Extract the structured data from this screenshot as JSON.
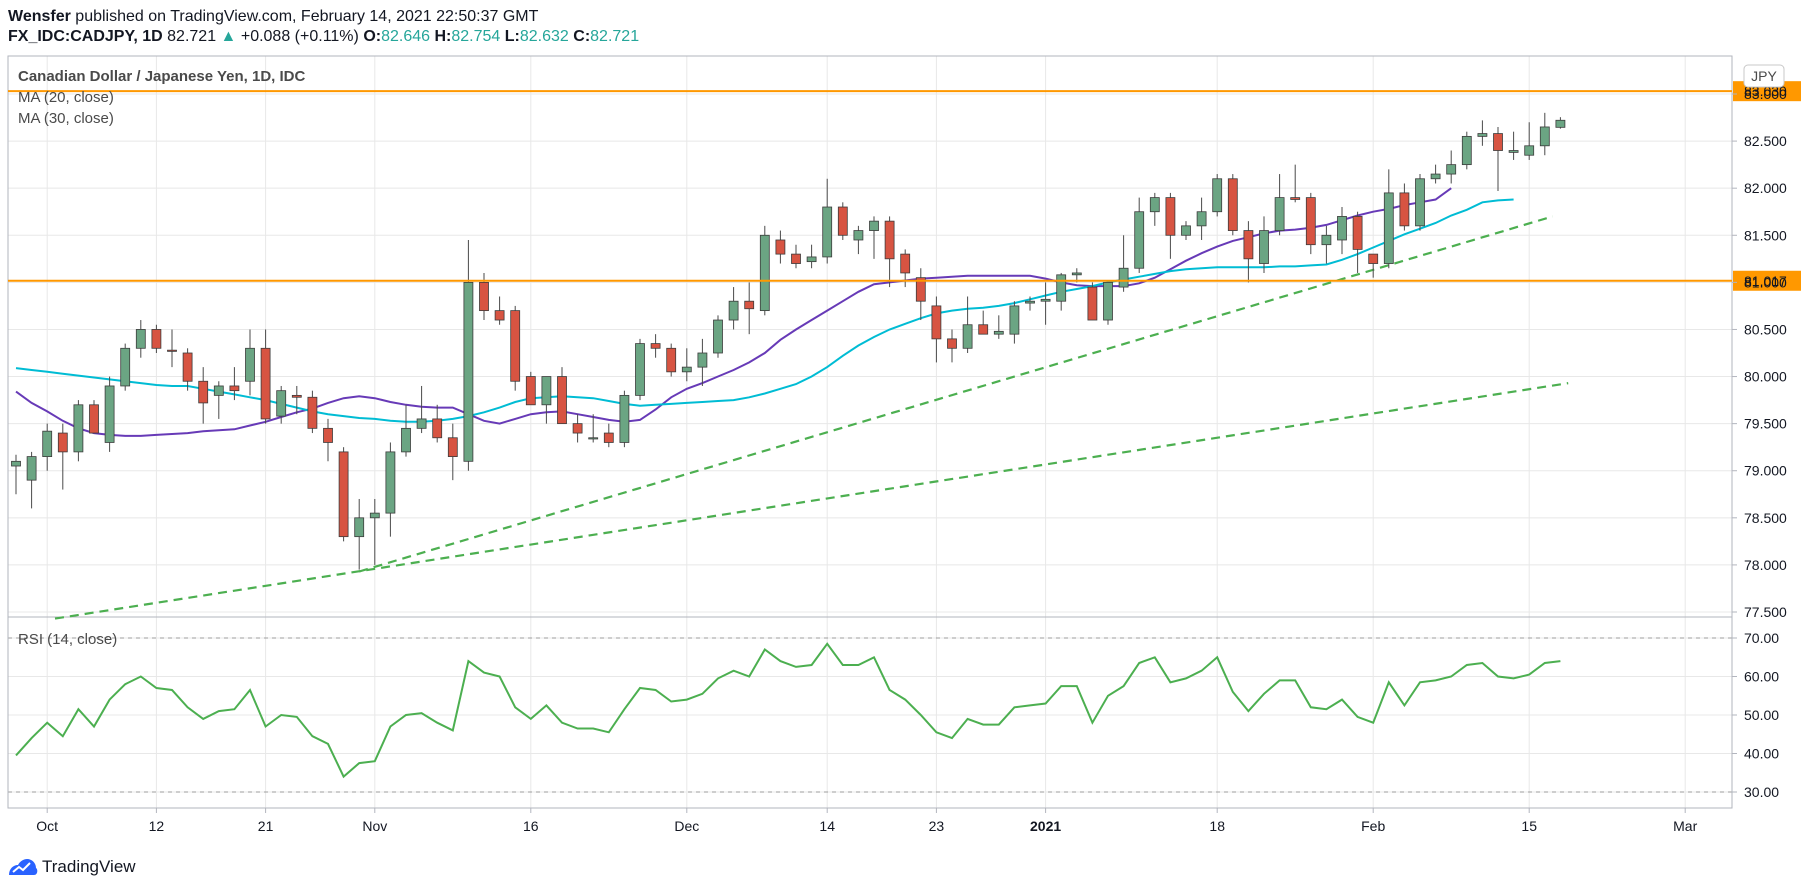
{
  "header": {
    "author": "Wensfer",
    "published_text": "published on TradingView.com, February 14, 2021 22:50:37 GMT",
    "symbol": "FX_IDC:CADJPY, 1D",
    "last": "82.721",
    "change_icon": "triangle-up-icon",
    "change": "+0.088 (+0.11%)",
    "o_label": "O:",
    "o": "82.646",
    "h_label": "H:",
    "h": "82.754",
    "l_label": "L:",
    "l": "82.632",
    "c_label": "C:",
    "c": "82.721"
  },
  "legend": {
    "title": "Canadian Dollar / Japanese Yen, 1D, IDC",
    "ma20": "MA (20, close)",
    "ma30": "MA (30, close)",
    "rsi": "RSI (14, close)",
    "currency": "JPY"
  },
  "footer": {
    "brand": "TradingView",
    "logo_icon": "tradingview-logo-icon"
  },
  "colors": {
    "up": "#6ba583",
    "down": "#d75442",
    "wick": "#4a4a4a",
    "ma20": "#673ab7",
    "ma30": "#00bcd4",
    "trend": "#4caf50",
    "rsi": "#4caf50",
    "hline": "#ff9800",
    "grid": "#e8e8e8",
    "axis": "#131722"
  },
  "chart_data": [
    {
      "type": "candlestick",
      "title": "Canadian Dollar / Japanese Yen, 1D, IDC",
      "ylabel": "JPY",
      "ylim": [
        77.45,
        83.3
      ],
      "yticks": [
        77.5,
        78.0,
        78.5,
        79.0,
        79.5,
        80.0,
        80.5,
        81.0,
        81.5,
        82.0,
        82.5,
        83.0
      ],
      "xlim": [
        -1,
        106.5
      ],
      "xticks": [
        {
          "i": 2,
          "label": "Oct",
          "bold": false
        },
        {
          "i": 9,
          "label": "12",
          "bold": false
        },
        {
          "i": 16,
          "label": "21",
          "bold": false
        },
        {
          "i": 23,
          "label": "Nov",
          "bold": false
        },
        {
          "i": 33,
          "label": "16",
          "bold": false
        },
        {
          "i": 43,
          "label": "Dec",
          "bold": false
        },
        {
          "i": 52,
          "label": "14",
          "bold": false
        },
        {
          "i": 59,
          "label": "23",
          "bold": false
        },
        {
          "i": 66,
          "label": "2021",
          "bold": true
        },
        {
          "i": 77,
          "label": "18",
          "bold": false
        },
        {
          "i": 87,
          "label": "Feb",
          "bold": false
        },
        {
          "i": 97,
          "label": "15",
          "bold": false
        },
        {
          "i": 107,
          "label": "Mar",
          "bold": false
        }
      ],
      "candles": [
        [
          79.05,
          79.17,
          78.75,
          79.1
        ],
        [
          78.9,
          79.2,
          78.6,
          79.15
        ],
        [
          79.15,
          79.5,
          79.0,
          79.42
        ],
        [
          79.4,
          79.5,
          78.8,
          79.2
        ],
        [
          79.2,
          79.75,
          79.1,
          79.7
        ],
        [
          79.7,
          79.75,
          79.4,
          79.4
        ],
        [
          79.3,
          80.0,
          79.2,
          79.9
        ],
        [
          79.9,
          80.35,
          79.85,
          80.3
        ],
        [
          80.3,
          80.6,
          80.2,
          80.5
        ],
        [
          80.5,
          80.55,
          80.25,
          80.3
        ],
        [
          80.28,
          80.5,
          80.1,
          80.27
        ],
        [
          80.25,
          80.3,
          79.85,
          79.95
        ],
        [
          79.95,
          80.1,
          79.5,
          79.72
        ],
        [
          79.8,
          79.95,
          79.55,
          79.9
        ],
        [
          79.9,
          80.1,
          79.75,
          79.85
        ],
        [
          79.95,
          80.5,
          79.8,
          80.3
        ],
        [
          80.3,
          80.5,
          79.5,
          79.55
        ],
        [
          79.58,
          79.9,
          79.5,
          79.85
        ],
        [
          79.8,
          79.9,
          79.6,
          79.78
        ],
        [
          79.78,
          79.85,
          79.4,
          79.45
        ],
        [
          79.45,
          79.55,
          79.1,
          79.3
        ],
        [
          79.2,
          79.25,
          78.25,
          78.3
        ],
        [
          78.3,
          78.7,
          77.95,
          78.5
        ],
        [
          78.5,
          78.7,
          78.0,
          78.55
        ],
        [
          78.55,
          79.3,
          78.3,
          79.2
        ],
        [
          79.2,
          79.7,
          79.15,
          79.45
        ],
        [
          79.45,
          79.9,
          79.4,
          79.55
        ],
        [
          79.55,
          79.7,
          79.3,
          79.35
        ],
        [
          79.35,
          79.5,
          78.9,
          79.15
        ],
        [
          79.1,
          81.45,
          79.0,
          81.0
        ],
        [
          81.0,
          81.1,
          80.6,
          80.7
        ],
        [
          80.7,
          80.85,
          80.55,
          80.6
        ],
        [
          80.7,
          80.75,
          79.85,
          79.95
        ],
        [
          80.0,
          80.05,
          79.7,
          79.7
        ],
        [
          79.7,
          80.0,
          79.5,
          80.0
        ],
        [
          80.0,
          80.1,
          79.5,
          79.5
        ],
        [
          79.5,
          79.6,
          79.3,
          79.4
        ],
        [
          79.35,
          79.6,
          79.3,
          79.35
        ],
        [
          79.4,
          79.5,
          79.25,
          79.3
        ],
        [
          79.3,
          79.85,
          79.25,
          79.8
        ],
        [
          79.8,
          80.4,
          79.75,
          80.35
        ],
        [
          80.35,
          80.45,
          80.2,
          80.3
        ],
        [
          80.3,
          80.35,
          80.0,
          80.05
        ],
        [
          80.05,
          80.3,
          79.95,
          80.1
        ],
        [
          80.1,
          80.4,
          79.9,
          80.25
        ],
        [
          80.25,
          80.65,
          80.2,
          80.6
        ],
        [
          80.6,
          80.95,
          80.5,
          80.8
        ],
        [
          80.8,
          81.0,
          80.45,
          80.72
        ],
        [
          80.7,
          81.6,
          80.65,
          81.5
        ],
        [
          81.45,
          81.55,
          81.2,
          81.3
        ],
        [
          81.3,
          81.4,
          81.15,
          81.2
        ],
        [
          81.22,
          81.4,
          81.15,
          81.27
        ],
        [
          81.27,
          82.1,
          81.2,
          81.8
        ],
        [
          81.8,
          81.85,
          81.45,
          81.5
        ],
        [
          81.45,
          81.6,
          81.3,
          81.55
        ],
        [
          81.55,
          81.7,
          81.25,
          81.65
        ],
        [
          81.65,
          81.7,
          80.95,
          81.25
        ],
        [
          81.3,
          81.35,
          80.95,
          81.1
        ],
        [
          81.05,
          81.15,
          80.6,
          80.8
        ],
        [
          80.75,
          80.85,
          80.15,
          80.4
        ],
        [
          80.4,
          80.5,
          80.15,
          80.3
        ],
        [
          80.3,
          80.85,
          80.25,
          80.55
        ],
        [
          80.55,
          80.7,
          80.45,
          80.45
        ],
        [
          80.45,
          80.65,
          80.4,
          80.48
        ],
        [
          80.45,
          80.8,
          80.35,
          80.75
        ],
        [
          80.78,
          80.85,
          80.7,
          80.8
        ],
        [
          80.8,
          81.0,
          80.55,
          80.82
        ],
        [
          80.8,
          81.1,
          80.7,
          81.08
        ],
        [
          81.08,
          81.15,
          81.0,
          81.1
        ],
        [
          80.95,
          81.0,
          80.6,
          80.6
        ],
        [
          80.6,
          81.0,
          80.55,
          81.0
        ],
        [
          80.95,
          81.5,
          80.9,
          81.15
        ],
        [
          81.15,
          81.9,
          81.1,
          81.75
        ],
        [
          81.75,
          81.95,
          81.6,
          81.9
        ],
        [
          81.9,
          81.95,
          81.25,
          81.5
        ],
        [
          81.5,
          81.65,
          81.45,
          81.6
        ],
        [
          81.6,
          81.9,
          81.45,
          81.75
        ],
        [
          81.75,
          82.15,
          81.7,
          82.1
        ],
        [
          82.1,
          82.15,
          81.5,
          81.55
        ],
        [
          81.55,
          81.65,
          81.0,
          81.25
        ],
        [
          81.2,
          81.7,
          81.1,
          81.55
        ],
        [
          81.55,
          82.15,
          81.5,
          81.9
        ],
        [
          81.9,
          82.25,
          81.85,
          81.88
        ],
        [
          81.9,
          81.95,
          81.3,
          81.4
        ],
        [
          81.4,
          81.6,
          81.2,
          81.5
        ],
        [
          81.45,
          81.8,
          81.3,
          81.7
        ],
        [
          81.7,
          81.75,
          81.1,
          81.35
        ],
        [
          81.3,
          81.3,
          81.05,
          81.2
        ],
        [
          81.2,
          82.2,
          81.15,
          81.95
        ],
        [
          81.95,
          82.05,
          81.55,
          81.6
        ],
        [
          81.6,
          82.15,
          81.55,
          82.1
        ],
        [
          82.1,
          82.25,
          82.05,
          82.15
        ],
        [
          82.15,
          82.4,
          82.05,
          82.25
        ],
        [
          82.25,
          82.6,
          82.2,
          82.55
        ],
        [
          82.55,
          82.72,
          82.45,
          82.58
        ],
        [
          82.58,
          82.65,
          81.97,
          82.4
        ],
        [
          82.38,
          82.6,
          82.3,
          82.4
        ],
        [
          82.35,
          82.7,
          82.3,
          82.45
        ],
        [
          82.45,
          82.8,
          82.35,
          82.65
        ],
        [
          82.646,
          82.754,
          82.632,
          82.721
        ]
      ],
      "series": [
        {
          "name": "MA (20, close)",
          "x_start": 0,
          "values": [
            79.84,
            79.72,
            79.63,
            79.53,
            79.45,
            79.4,
            79.38,
            79.37,
            79.37,
            79.38,
            79.39,
            79.4,
            79.42,
            79.43,
            79.44,
            79.48,
            79.52,
            79.57,
            79.62,
            79.66,
            79.72,
            79.77,
            79.79,
            79.77,
            79.73,
            79.7,
            79.68,
            79.67,
            79.67,
            79.6,
            79.53,
            79.5,
            79.55,
            79.6,
            79.62,
            79.63,
            79.6,
            79.57,
            79.54,
            79.52,
            79.54,
            79.65,
            79.78,
            79.87,
            79.93,
            80.0,
            80.07,
            80.15,
            80.25,
            80.39,
            80.5,
            80.6,
            80.7,
            80.8,
            80.9,
            80.98,
            81.0,
            81.02,
            81.04,
            81.05,
            81.06,
            81.07,
            81.07,
            81.07,
            81.07,
            81.07,
            81.04,
            81.0,
            80.97,
            80.96,
            80.96,
            80.96,
            80.99,
            81.05,
            81.14,
            81.23,
            81.31,
            81.38,
            81.44,
            81.48,
            81.52,
            81.55,
            81.56,
            81.58,
            81.61,
            81.66,
            81.71,
            81.75,
            81.78,
            81.82,
            81.85,
            81.88,
            82.0
          ]
        },
        {
          "name": "MA (30, close)",
          "x_start": 0,
          "values": [
            80.09,
            80.07,
            80.05,
            80.03,
            80.01,
            79.99,
            79.97,
            79.95,
            79.93,
            79.91,
            79.9,
            79.9,
            79.87,
            79.84,
            79.81,
            79.78,
            79.75,
            79.71,
            79.67,
            79.63,
            79.6,
            79.58,
            79.56,
            79.55,
            79.53,
            79.52,
            79.52,
            79.53,
            79.55,
            79.58,
            79.62,
            79.67,
            79.73,
            79.77,
            79.78,
            79.79,
            79.78,
            79.77,
            79.74,
            79.71,
            79.69,
            79.7,
            79.71,
            79.72,
            79.73,
            79.74,
            79.75,
            79.78,
            79.82,
            79.87,
            79.92,
            80.0,
            80.1,
            80.22,
            80.33,
            80.42,
            80.5,
            80.56,
            80.62,
            80.67,
            80.7,
            80.72,
            80.73,
            80.75,
            80.78,
            80.82,
            80.86,
            80.9,
            80.93,
            80.96,
            81.0,
            81.03,
            81.06,
            81.09,
            81.12,
            81.14,
            81.15,
            81.16,
            81.16,
            81.16,
            81.16,
            81.17,
            81.17,
            81.18,
            81.19,
            81.24,
            81.3,
            81.37,
            81.44,
            81.51,
            81.57,
            81.63,
            81.71,
            81.77,
            81.85,
            81.87,
            81.88
          ]
        }
      ],
      "hlines": [
        {
          "value": 81.017,
          "label": "81.017"
        },
        {
          "value": 83.03,
          "label": "83.030"
        }
      ],
      "trendlines": [
        {
          "x1": 22,
          "y1": 77.93,
          "x2": 98.5,
          "y2": 81.7
        },
        {
          "x1": 2.5,
          "y1": 77.43,
          "x2": 99.5,
          "y2": 79.93
        }
      ]
    },
    {
      "type": "line",
      "title": "RSI (14, close)",
      "ylim": [
        25,
        73.5
      ],
      "yticks": [
        30,
        40,
        50,
        60,
        70
      ],
      "bands": [
        30,
        70
      ],
      "series": [
        {
          "name": "RSI (14, close)",
          "x_start": 0,
          "values": [
            39.5,
            44.0,
            48.0,
            44.5,
            51.5,
            47.0,
            54.0,
            58.0,
            60.0,
            57.0,
            56.5,
            52.0,
            49.0,
            51.0,
            51.5,
            56.5,
            47.0,
            50.0,
            49.5,
            44.5,
            42.5,
            34.0,
            37.5,
            38.0,
            47.0,
            50.0,
            50.5,
            48.0,
            46.0,
            64.0,
            61.0,
            60.0,
            52.0,
            49.0,
            52.5,
            48.0,
            46.5,
            46.5,
            45.5,
            51.5,
            57.0,
            56.5,
            53.5,
            54.0,
            55.5,
            59.5,
            61.5,
            60.0,
            67.0,
            64.0,
            62.5,
            63.0,
            68.5,
            63.0,
            63.0,
            65.0,
            56.5,
            54.0,
            50.0,
            45.5,
            44.0,
            49.0,
            47.5,
            47.5,
            52.0,
            52.5,
            53.0,
            57.5,
            57.5,
            48.0,
            55.0,
            57.5,
            63.5,
            65.0,
            58.5,
            59.5,
            61.5,
            65.0,
            56.0,
            51.0,
            55.5,
            59.0,
            59.0,
            52.0,
            51.5,
            54.0,
            49.5,
            48.0,
            58.5,
            52.5,
            58.5,
            59.0,
            60.0,
            63.0,
            63.5,
            60.0,
            59.5,
            60.5,
            63.5,
            64.0
          ]
        }
      ]
    }
  ]
}
